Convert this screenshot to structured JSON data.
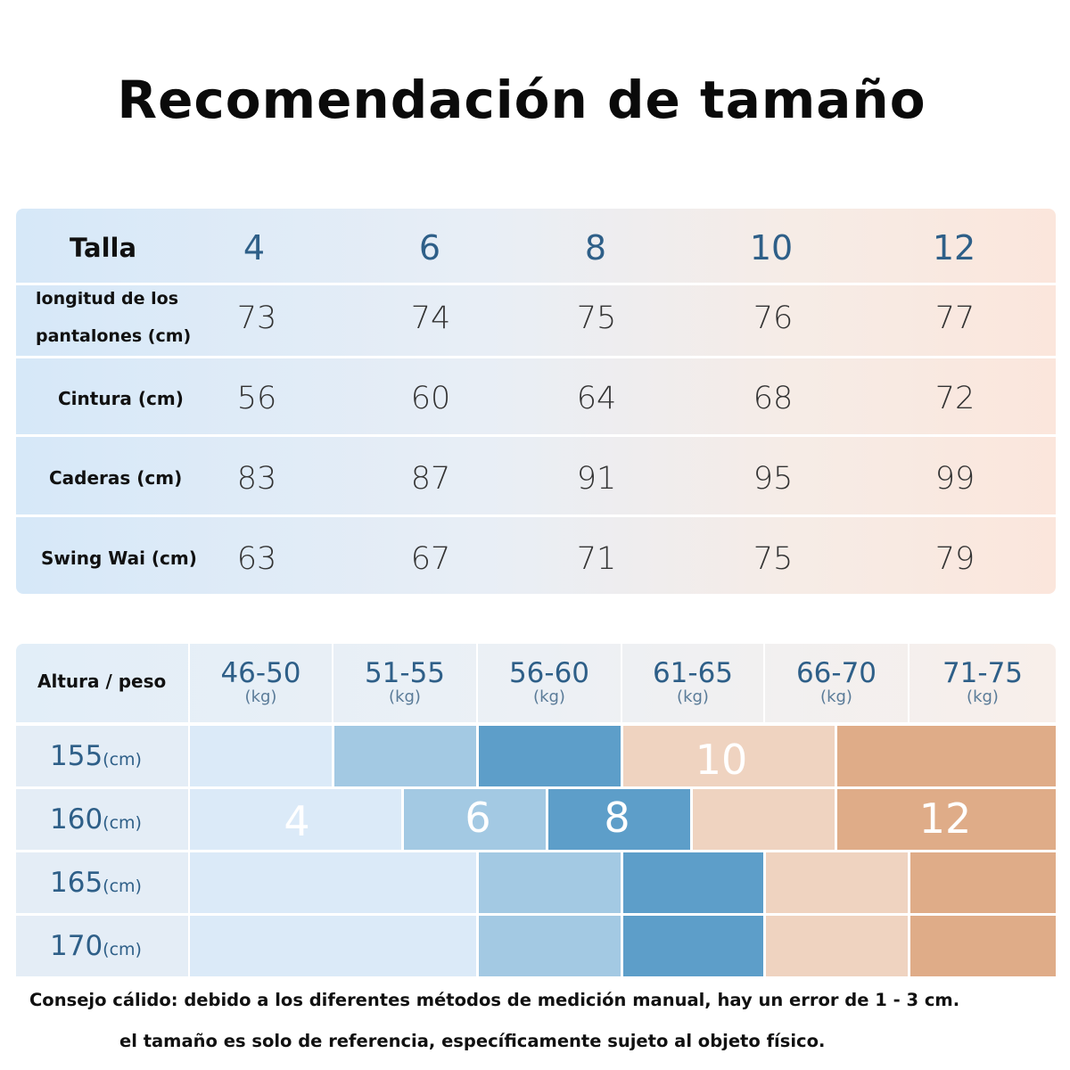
{
  "title": "Recomendación de tamaño",
  "size_table": {
    "header_label": "Talla",
    "sizes": [
      "4",
      "6",
      "8",
      "10",
      "12"
    ],
    "rows": [
      {
        "label_line1": "longitud de los",
        "label_line2": "pantalones (cm)",
        "values": [
          "73",
          "74",
          "75",
          "76",
          "77"
        ]
      },
      {
        "label": "Cintura (cm)",
        "values": [
          "56",
          "60",
          "64",
          "68",
          "72"
        ]
      },
      {
        "label": "Caderas (cm)",
        "values": [
          "83",
          "87",
          "91",
          "95",
          "99"
        ]
      },
      {
        "label": "Swing Wai (cm)",
        "values": [
          "63",
          "67",
          "71",
          "75",
          "79"
        ]
      }
    ]
  },
  "fit_table": {
    "header_label": "Altura / peso",
    "weights": [
      {
        "range": "46-50",
        "unit": "(kg)"
      },
      {
        "range": "51-55",
        "unit": "(kg)"
      },
      {
        "range": "56-60",
        "unit": "(kg)"
      },
      {
        "range": "61-65",
        "unit": "(kg)"
      },
      {
        "range": "66-70",
        "unit": "(kg)"
      },
      {
        "range": "71-75",
        "unit": "(kg)"
      }
    ],
    "heights": [
      {
        "value": "155",
        "unit": "(cm)"
      },
      {
        "value": "160",
        "unit": "(cm)"
      },
      {
        "value": "165",
        "unit": "(cm)"
      },
      {
        "value": "170",
        "unit": "(cm)"
      }
    ],
    "size_labels": {
      "s4": "4",
      "s6": "6",
      "s8": "8",
      "s10": "10",
      "s12": "12"
    },
    "colors": {
      "size4": "#dbeaf8",
      "size6": "#a3c9e3",
      "size8": "#5d9ec9",
      "size10": "#efd3c0",
      "size12": "#dfac88"
    }
  },
  "note": {
    "line1": "Consejo cálido: debido a los diferentes métodos de medición manual, hay un error de 1 - 3 cm.",
    "line2": "el tamaño es solo de referencia, específicamente sujeto al objeto físico."
  }
}
